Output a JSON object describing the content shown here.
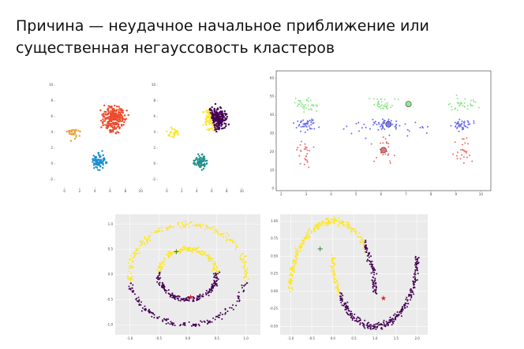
{
  "title_lines": [
    "Причина — неудачное начальное приближение или",
    "существенная негауссовость кластеров"
  ],
  "plots": [
    {
      "xticks": [
        0,
        2,
        4,
        6,
        8,
        10
      ],
      "yticks": [
        -2,
        0,
        2,
        4,
        6,
        8,
        10
      ]
    },
    {
      "xticks": [
        0,
        2,
        4,
        6,
        8,
        10
      ],
      "yticks": [
        -2,
        0,
        2,
        4,
        6,
        8,
        10
      ]
    },
    {
      "xticks": [
        2,
        3,
        4,
        5,
        6,
        7,
        8,
        9,
        10
      ],
      "yticks": [
        0,
        10,
        20,
        30,
        40,
        50,
        60
      ]
    },
    {
      "xticks": [
        {
          "value": -1,
          "label": "-1.0"
        },
        {
          "value": -0.5,
          "label": "-0.5"
        },
        {
          "value": 0,
          "label": "0.0"
        },
        {
          "value": 0.5,
          "label": "0.5"
        },
        {
          "value": 1,
          "label": "1.0"
        }
      ],
      "yticks": [
        {
          "value": -1,
          "label": "-1.0"
        },
        {
          "value": -0.5,
          "label": "-0.5"
        },
        {
          "value": 0,
          "label": "0.0"
        },
        {
          "value": 0.5,
          "label": "0.5"
        },
        {
          "value": 1,
          "label": "1.0"
        }
      ]
    },
    {
      "xticks": [
        {
          "value": -1,
          "label": "-1.0"
        },
        {
          "value": -0.5,
          "label": "-0.5"
        },
        {
          "value": 0,
          "label": "0.0"
        },
        {
          "value": 0.5,
          "label": "0.5"
        },
        {
          "value": 1,
          "label": "1.0"
        },
        {
          "value": 1.5,
          "label": "1.5"
        },
        {
          "value": 2,
          "label": "2.0"
        }
      ],
      "yticks": [
        {
          "value": -0.5,
          "label": "-0.50"
        },
        {
          "value": -0.25,
          "label": "-0.25"
        },
        {
          "value": 0,
          "label": "0.00"
        },
        {
          "value": 0.25,
          "label": "0.25"
        },
        {
          "value": 0.5,
          "label": "0.50"
        },
        {
          "value": 0.75,
          "label": "0.75"
        },
        {
          "value": 1,
          "label": "1.00"
        }
      ]
    }
  ]
}
